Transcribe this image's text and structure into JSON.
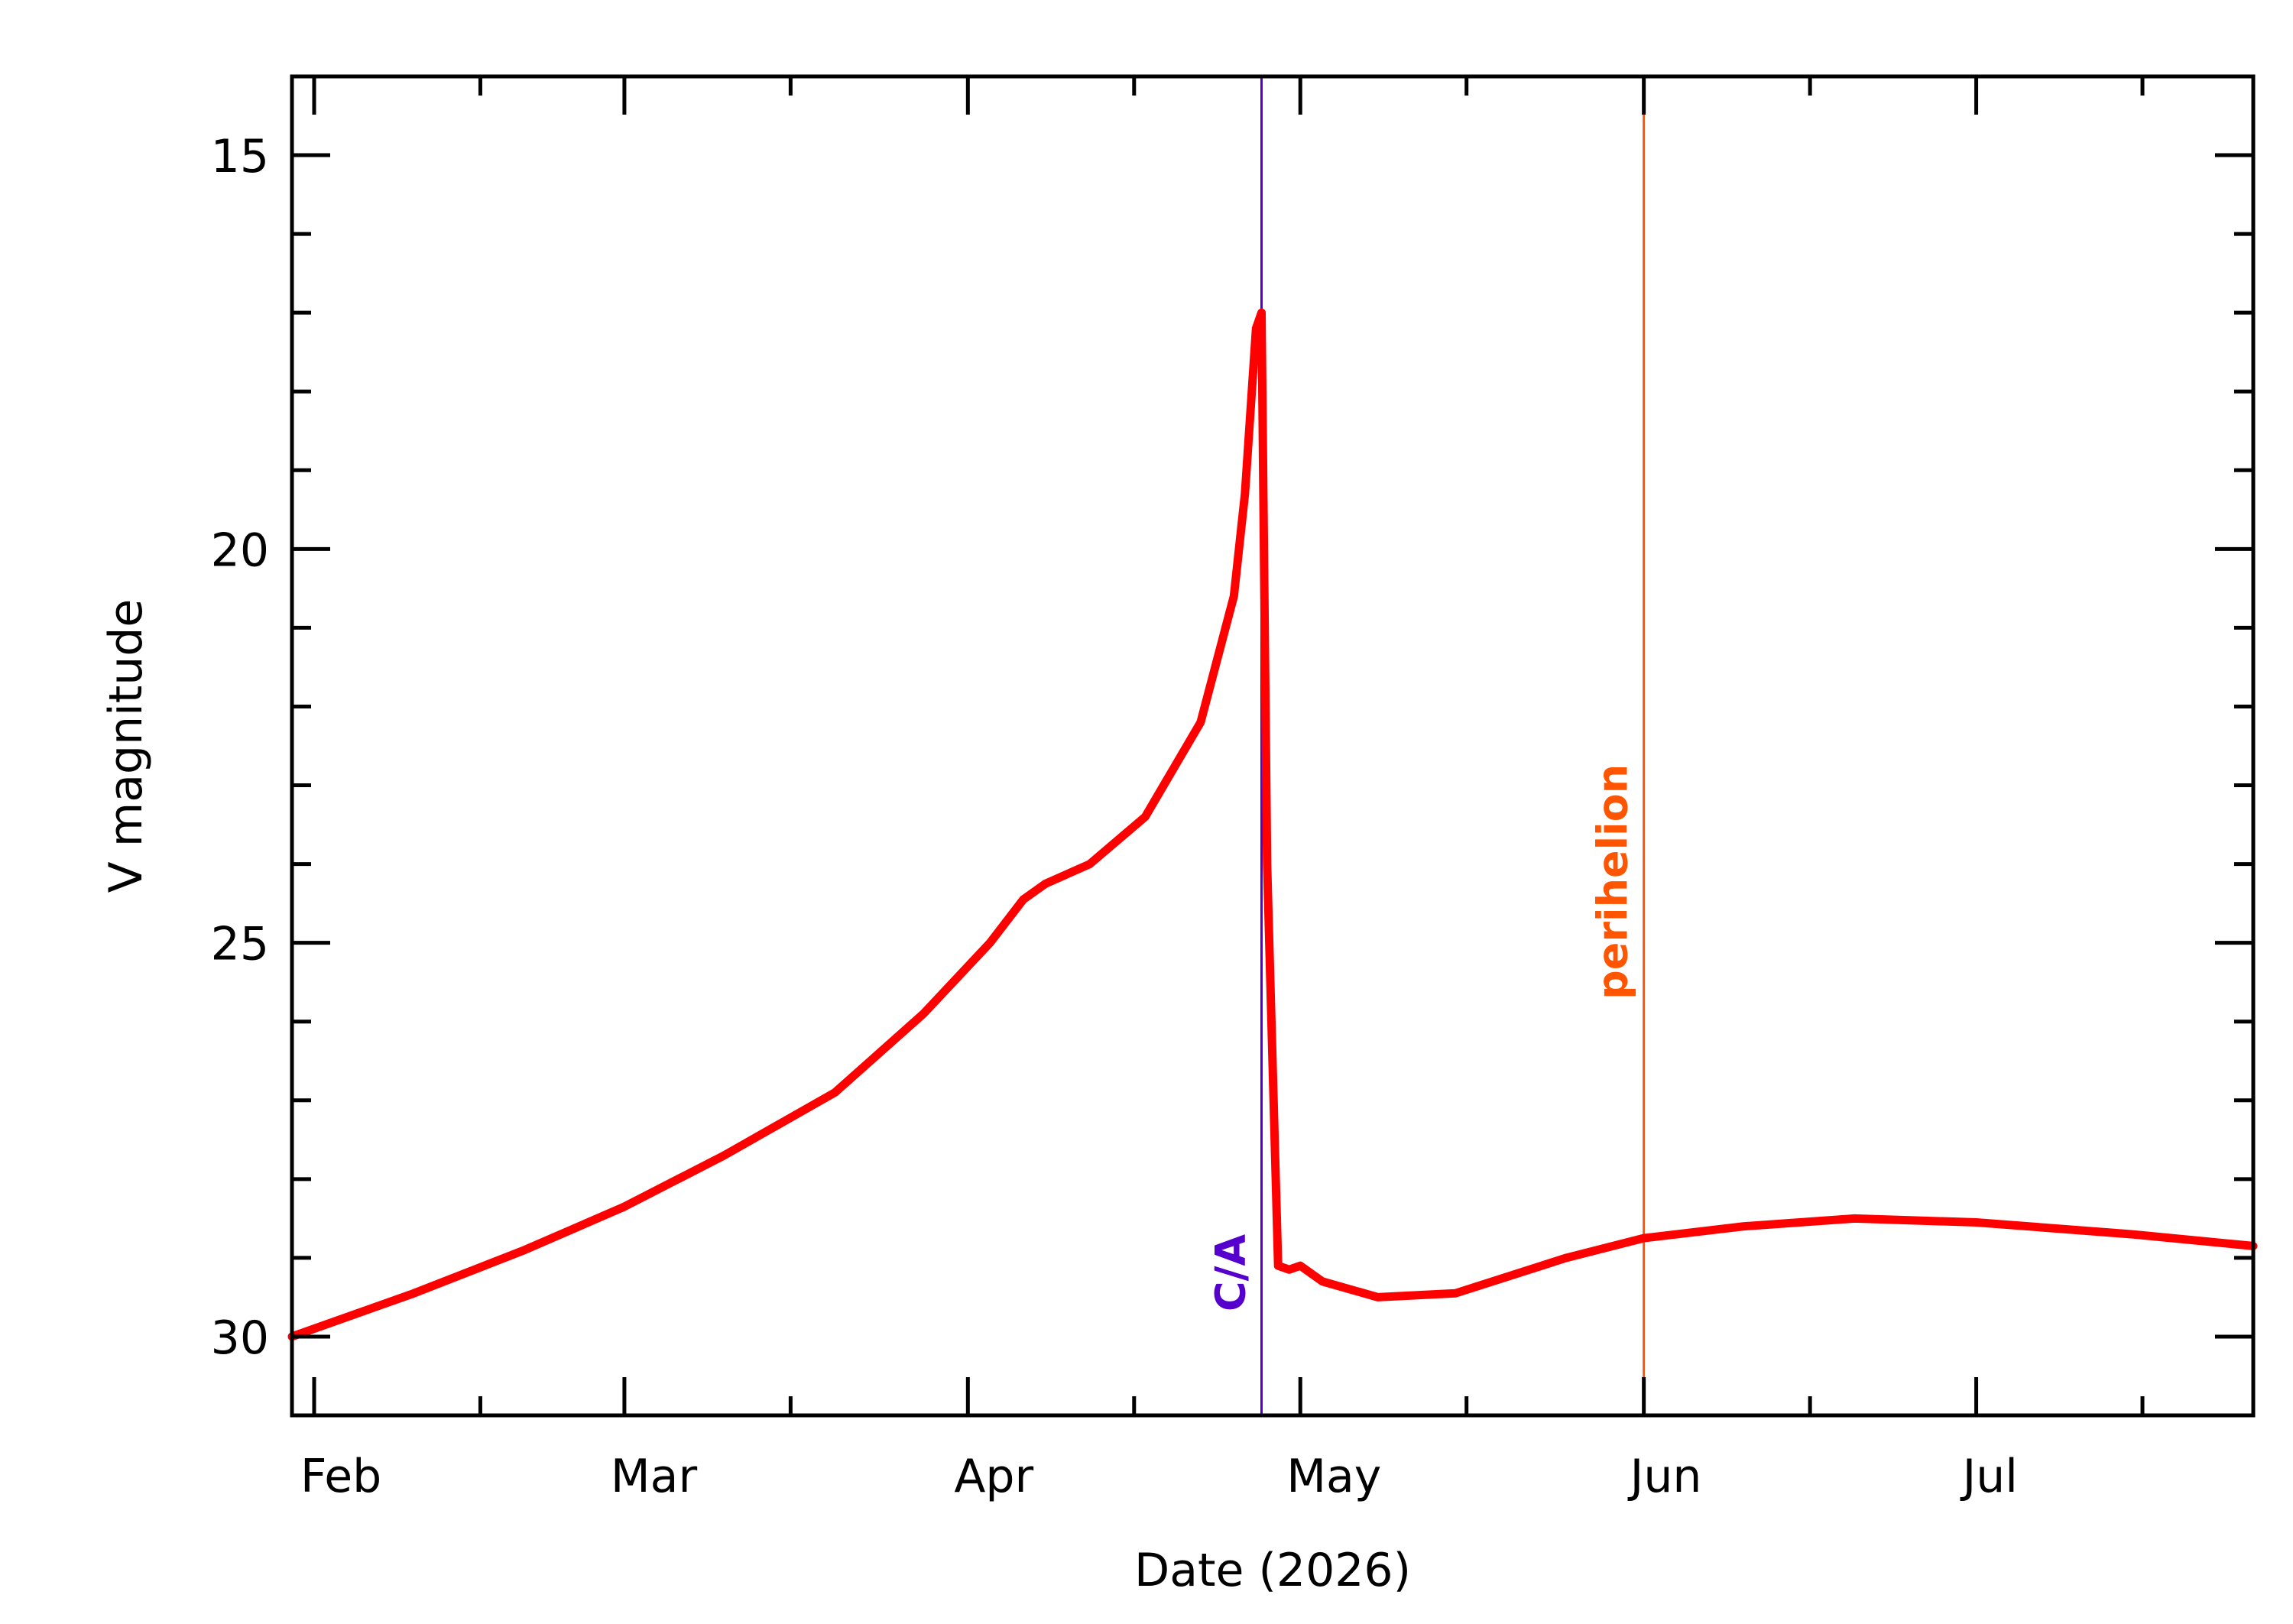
{
  "chart_data": {
    "type": "line",
    "title": "",
    "xlabel": "Date (2026)",
    "ylabel": "V magnitude",
    "x_axis": {
      "type": "date",
      "range": [
        "2026-01-30",
        "2026-07-26"
      ],
      "tick_labels": [
        {
          "date": "2026-02-01",
          "label": "Feb"
        },
        {
          "date": "2026-03-01",
          "label": "Mar"
        },
        {
          "date": "2026-04-01",
          "label": "Apr"
        },
        {
          "date": "2026-05-01",
          "label": "May"
        },
        {
          "date": "2026-06-01",
          "label": "Jun"
        },
        {
          "date": "2026-07-01",
          "label": "Jul"
        }
      ]
    },
    "y_axis": {
      "inverted": true,
      "range": [
        14.0,
        31.0
      ],
      "tick_values": [
        15,
        20,
        25,
        30
      ],
      "tick_labels": [
        "15",
        "20",
        "25",
        "30"
      ]
    },
    "grid": false,
    "series": [
      {
        "color": "#ff0000",
        "points": [
          [
            "2026-01-30",
            30.0
          ],
          [
            "2026-02-10",
            29.45
          ],
          [
            "2026-02-20",
            28.9
          ],
          [
            "2026-03-01",
            28.35
          ],
          [
            "2026-03-10",
            27.7
          ],
          [
            "2026-03-20",
            26.9
          ],
          [
            "2026-03-28",
            25.9
          ],
          [
            "2026-04-03",
            25.0
          ],
          [
            "2026-04-06",
            24.45
          ],
          [
            "2026-04-08",
            24.25
          ],
          [
            "2026-04-12",
            24.0
          ],
          [
            "2026-04-17",
            23.4
          ],
          [
            "2026-04-22",
            22.2
          ],
          [
            "2026-04-25",
            20.6
          ],
          [
            "2026-04-26",
            19.3
          ],
          [
            "2026-04-27",
            17.2
          ],
          [
            "2026-04-27T12:00",
            17.0
          ],
          [
            "2026-04-28",
            24.0
          ],
          [
            "2026-04-29",
            29.1
          ],
          [
            "2026-04-30",
            29.15
          ],
          [
            "2026-05-01",
            29.1
          ],
          [
            "2026-05-03",
            29.3
          ],
          [
            "2026-05-08",
            29.5
          ],
          [
            "2026-05-15",
            29.45
          ],
          [
            "2026-05-25",
            29.0
          ],
          [
            "2026-06-01",
            28.75
          ],
          [
            "2026-06-10",
            28.6
          ],
          [
            "2026-06-20",
            28.5
          ],
          [
            "2026-07-01",
            28.55
          ],
          [
            "2026-07-15",
            28.7
          ],
          [
            "2026-07-26",
            28.85
          ]
        ]
      }
    ],
    "markers": [
      {
        "date": "2026-04-27T12:00",
        "label": "C/A",
        "color": "#5500cc"
      },
      {
        "date": "2026-06-01",
        "label": "perihelion",
        "color": "#ff5500"
      }
    ]
  }
}
